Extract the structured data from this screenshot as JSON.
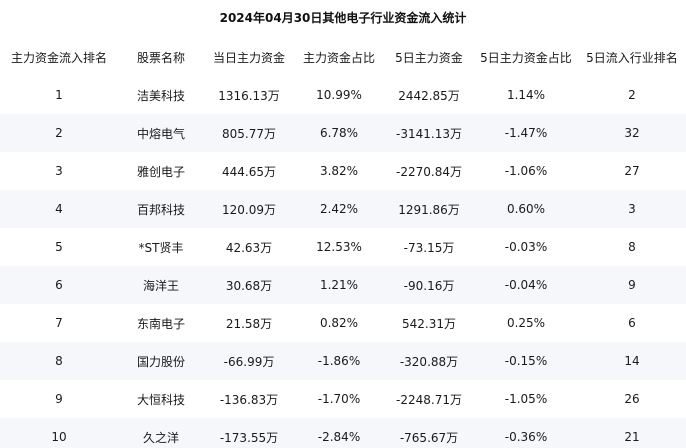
{
  "title": "2024年04月30日其他电子行业资金流入统计",
  "columns": [
    "主力资金流入排名",
    "股票名称",
    "当日主力资金",
    "主力资金占比",
    "5日主力资金",
    "5日主力资金占比",
    "5日流入行业排名"
  ],
  "rows": [
    [
      "1",
      "洁美科技",
      "1316.13万",
      "10.99%",
      "2442.85万",
      "1.14%",
      "2"
    ],
    [
      "2",
      "中熔电气",
      "805.77万",
      "6.78%",
      "-3141.13万",
      "-1.47%",
      "32"
    ],
    [
      "3",
      "雅创电子",
      "444.65万",
      "3.82%",
      "-2270.84万",
      "-1.06%",
      "27"
    ],
    [
      "4",
      "百邦科技",
      "120.09万",
      "2.42%",
      "1291.86万",
      "0.60%",
      "3"
    ],
    [
      "5",
      "*ST贤丰",
      "42.63万",
      "12.53%",
      "-73.15万",
      "-0.03%",
      "8"
    ],
    [
      "6",
      "海洋王",
      "30.68万",
      "1.21%",
      "-90.16万",
      "-0.04%",
      "9"
    ],
    [
      "7",
      "东南电子",
      "21.58万",
      "0.82%",
      "542.31万",
      "0.25%",
      "6"
    ],
    [
      "8",
      "国力股份",
      "-66.99万",
      "-1.86%",
      "-320.88万",
      "-0.15%",
      "14"
    ],
    [
      "9",
      "大恒科技",
      "-136.83万",
      "-1.70%",
      "-2248.71万",
      "-1.05%",
      "26"
    ],
    [
      "10",
      "久之洋",
      "-173.55万",
      "-2.84%",
      "-765.67万",
      "-0.36%",
      "21"
    ]
  ]
}
